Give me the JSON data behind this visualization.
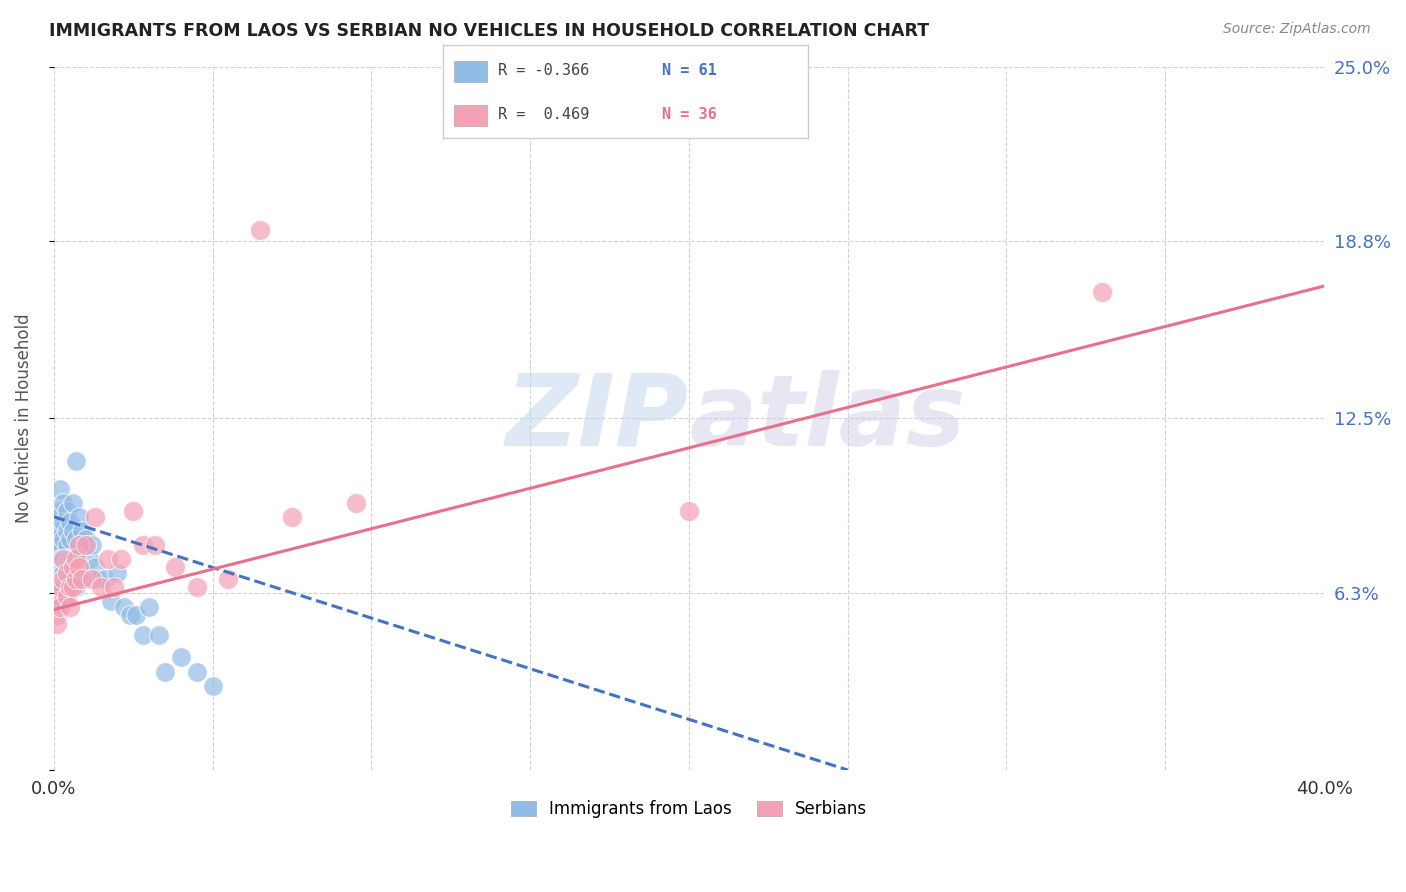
{
  "title": "IMMIGRANTS FROM LAOS VS SERBIAN NO VEHICLES IN HOUSEHOLD CORRELATION CHART",
  "source": "Source: ZipAtlas.com",
  "ylabel": "No Vehicles in Household",
  "xlim": [
    0.0,
    0.4
  ],
  "ylim": [
    0.0,
    0.25
  ],
  "xticks": [
    0.0,
    0.05,
    0.1,
    0.15,
    0.2,
    0.25,
    0.3,
    0.35,
    0.4
  ],
  "xticklabels": [
    "0.0%",
    "",
    "",
    "",
    "",
    "",
    "",
    "",
    "40.0%"
  ],
  "yticks_right": [
    0.0,
    0.063,
    0.125,
    0.188,
    0.25
  ],
  "yticklabels_right": [
    "",
    "6.3%",
    "12.5%",
    "18.8%",
    "25.0%"
  ],
  "watermark": "ZIPatlas",
  "legend_r1": "-0.366",
  "legend_n1": "61",
  "legend_r2": "0.469",
  "legend_n2": "36",
  "color_laos": "#92bce8",
  "color_serbian": "#f4a0b5",
  "color_line_laos": "#4472c4",
  "color_line_serbian": "#e8708a",
  "background_color": "#ffffff",
  "laos_x": [
    0.001,
    0.001,
    0.001,
    0.001,
    0.001,
    0.001,
    0.001,
    0.002,
    0.002,
    0.002,
    0.002,
    0.002,
    0.002,
    0.002,
    0.003,
    0.003,
    0.003,
    0.003,
    0.003,
    0.003,
    0.003,
    0.004,
    0.004,
    0.004,
    0.004,
    0.004,
    0.004,
    0.005,
    0.005,
    0.005,
    0.005,
    0.006,
    0.006,
    0.006,
    0.006,
    0.007,
    0.007,
    0.007,
    0.007,
    0.008,
    0.008,
    0.009,
    0.009,
    0.01,
    0.011,
    0.012,
    0.013,
    0.014,
    0.016,
    0.018,
    0.02,
    0.022,
    0.024,
    0.026,
    0.028,
    0.03,
    0.033,
    0.035,
    0.04,
    0.045,
    0.05
  ],
  "laos_y": [
    0.09,
    0.082,
    0.078,
    0.072,
    0.068,
    0.063,
    0.058,
    0.1,
    0.092,
    0.085,
    0.08,
    0.075,
    0.07,
    0.065,
    0.095,
    0.088,
    0.082,
    0.075,
    0.07,
    0.065,
    0.06,
    0.092,
    0.085,
    0.08,
    0.075,
    0.068,
    0.062,
    0.088,
    0.082,
    0.075,
    0.068,
    0.095,
    0.085,
    0.075,
    0.065,
    0.11,
    0.082,
    0.075,
    0.065,
    0.09,
    0.072,
    0.085,
    0.068,
    0.082,
    0.075,
    0.08,
    0.072,
    0.068,
    0.068,
    0.06,
    0.07,
    0.058,
    0.055,
    0.055,
    0.048,
    0.058,
    0.048,
    0.035,
    0.04,
    0.035,
    0.03
  ],
  "serbian_x": [
    0.001,
    0.001,
    0.001,
    0.002,
    0.002,
    0.003,
    0.003,
    0.004,
    0.004,
    0.005,
    0.005,
    0.006,
    0.006,
    0.007,
    0.007,
    0.008,
    0.008,
    0.009,
    0.01,
    0.012,
    0.013,
    0.015,
    0.017,
    0.019,
    0.021,
    0.025,
    0.028,
    0.032,
    0.038,
    0.045,
    0.055,
    0.065,
    0.075,
    0.095,
    0.2,
    0.33
  ],
  "serbian_y": [
    0.06,
    0.055,
    0.052,
    0.065,
    0.058,
    0.075,
    0.068,
    0.07,
    0.062,
    0.065,
    0.058,
    0.072,
    0.065,
    0.075,
    0.068,
    0.08,
    0.072,
    0.068,
    0.08,
    0.068,
    0.09,
    0.065,
    0.075,
    0.065,
    0.075,
    0.092,
    0.08,
    0.08,
    0.072,
    0.065,
    0.068,
    0.192,
    0.09,
    0.095,
    0.092,
    0.17
  ],
  "line_laos_x0": 0.0,
  "line_laos_y0": 0.09,
  "line_laos_x1": 0.25,
  "line_laos_y1": 0.0,
  "line_serbian_x0": 0.0,
  "line_serbian_y0": 0.057,
  "line_serbian_x1": 0.4,
  "line_serbian_y1": 0.172
}
